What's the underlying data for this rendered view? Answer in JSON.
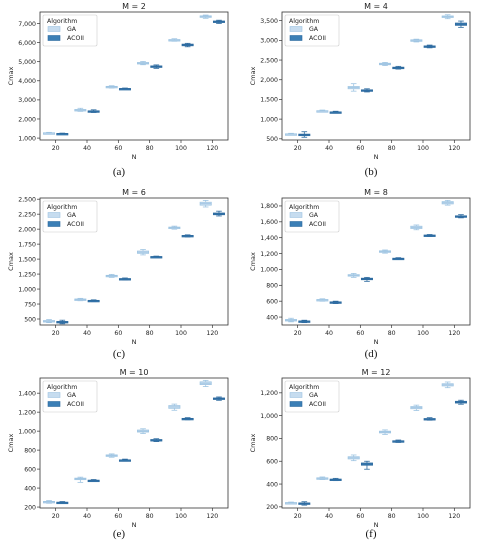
{
  "chart_data": [
    {
      "type": "box",
      "panel": "(a)",
      "title": "M = 2",
      "xlabel": "N",
      "ylabel": "Cmax",
      "categories": [
        "20",
        "40",
        "60",
        "80",
        "100",
        "120"
      ],
      "ylim": [
        900,
        7600
      ],
      "yticks": [
        1000,
        2000,
        3000,
        4000,
        5000,
        6000,
        7000
      ],
      "ytick_labels": [
        "1,000",
        "2,000",
        "3,000",
        "4,000",
        "5,000",
        "6,000",
        "7,000"
      ],
      "legend": {
        "title": "Algorithm",
        "entries": [
          "GA",
          "ACOII"
        ],
        "placement": "top-left"
      },
      "series": [
        {
          "name": "GA",
          "color": "#c6dcef",
          "edge": "#9ec4e2",
          "boxes": [
            {
              "min": 1230,
              "q1": 1250,
              "median": 1265,
              "q3": 1280,
              "max": 1300
            },
            {
              "min": 2400,
              "q1": 2440,
              "median": 2470,
              "q3": 2500,
              "max": 2560
            },
            {
              "min": 3620,
              "q1": 3650,
              "median": 3680,
              "q3": 3710,
              "max": 3740
            },
            {
              "min": 4840,
              "q1": 4880,
              "median": 4920,
              "q3": 4960,
              "max": 5010
            },
            {
              "min": 6070,
              "q1": 6100,
              "median": 6130,
              "q3": 6160,
              "max": 6200
            },
            {
              "min": 7270,
              "q1": 7320,
              "median": 7360,
              "q3": 7400,
              "max": 7440
            }
          ]
        },
        {
          "name": "ACOII",
          "color": "#3b7fb6",
          "edge": "#2d6a9f",
          "boxes": [
            {
              "min": 1210,
              "q1": 1225,
              "median": 1235,
              "q3": 1245,
              "max": 1260
            },
            {
              "min": 2340,
              "q1": 2370,
              "median": 2400,
              "q3": 2430,
              "max": 2480
            },
            {
              "min": 3540,
              "q1": 3565,
              "median": 3580,
              "q3": 3600,
              "max": 3620
            },
            {
              "min": 4650,
              "q1": 4700,
              "median": 4740,
              "q3": 4780,
              "max": 4830
            },
            {
              "min": 5780,
              "q1": 5830,
              "median": 5880,
              "q3": 5920,
              "max": 5960
            },
            {
              "min": 7000,
              "q1": 7050,
              "median": 7090,
              "q3": 7130,
              "max": 7170
            }
          ]
        }
      ]
    },
    {
      "type": "box",
      "panel": "(b)",
      "title": "M = 4",
      "xlabel": "N",
      "ylabel": "Cmax",
      "categories": [
        "20",
        "40",
        "60",
        "80",
        "100",
        "120"
      ],
      "ylim": [
        470,
        3720
      ],
      "yticks": [
        500,
        1000,
        1500,
        2000,
        2500,
        3000,
        3500
      ],
      "ytick_labels": [
        "500",
        "1,000",
        "1,500",
        "2,000",
        "2,500",
        "3,000",
        "3,500"
      ],
      "legend": {
        "title": "Algorithm",
        "entries": [
          "GA",
          "ACOII"
        ],
        "placement": "top-left"
      },
      "series": [
        {
          "name": "GA",
          "color": "#c6dcef",
          "edge": "#9ec4e2",
          "boxes": [
            {
              "min": 600,
              "q1": 610,
              "median": 620,
              "q3": 628,
              "max": 640
            },
            {
              "min": 1180,
              "q1": 1195,
              "median": 1205,
              "q3": 1215,
              "max": 1230
            },
            {
              "min": 1710,
              "q1": 1770,
              "median": 1800,
              "q3": 1830,
              "max": 1900
            },
            {
              "min": 2360,
              "q1": 2385,
              "median": 2400,
              "q3": 2420,
              "max": 2440
            },
            {
              "min": 2960,
              "q1": 2985,
              "median": 3000,
              "q3": 3015,
              "max": 3030
            },
            {
              "min": 3550,
              "q1": 3580,
              "median": 3600,
              "q3": 3620,
              "max": 3650
            }
          ]
        },
        {
          "name": "ACOII",
          "color": "#3b7fb6",
          "edge": "#2d6a9f",
          "boxes": [
            {
              "min": 540,
              "q1": 590,
              "median": 605,
              "q3": 620,
              "max": 680
            },
            {
              "min": 1155,
              "q1": 1165,
              "median": 1175,
              "q3": 1185,
              "max": 1200
            },
            {
              "min": 1690,
              "q1": 1715,
              "median": 1730,
              "q3": 1745,
              "max": 1770
            },
            {
              "min": 2270,
              "q1": 2290,
              "median": 2305,
              "q3": 2320,
              "max": 2340
            },
            {
              "min": 2810,
              "q1": 2830,
              "median": 2845,
              "q3": 2860,
              "max": 2880
            },
            {
              "min": 3330,
              "q1": 3380,
              "median": 3410,
              "q3": 3440,
              "max": 3490
            }
          ]
        }
      ]
    },
    {
      "type": "box",
      "panel": "(c)",
      "title": "M = 6",
      "xlabel": "N",
      "ylabel": "Cmax",
      "categories": [
        "20",
        "40",
        "60",
        "80",
        "100",
        "120"
      ],
      "ylim": [
        400,
        2520
      ],
      "yticks": [
        500,
        750,
        1000,
        1250,
        1500,
        1750,
        2000,
        2250,
        2500
      ],
      "ytick_labels": [
        "500",
        "750",
        "1,000",
        "1,250",
        "1,500",
        "1,750",
        "2,000",
        "2,250",
        "2,500"
      ],
      "legend": {
        "title": "Algorithm",
        "entries": [
          "GA",
          "ACOII"
        ],
        "placement": "top-left"
      },
      "series": [
        {
          "name": "GA",
          "color": "#c6dcef",
          "edge": "#9ec4e2",
          "boxes": [
            {
              "min": 440,
              "q1": 455,
              "median": 465,
              "q3": 475,
              "max": 490
            },
            {
              "min": 805,
              "q1": 815,
              "median": 825,
              "q3": 835,
              "max": 845
            },
            {
              "min": 1195,
              "q1": 1210,
              "median": 1220,
              "q3": 1230,
              "max": 1245
            },
            {
              "min": 1570,
              "q1": 1595,
              "median": 1615,
              "q3": 1635,
              "max": 1660
            },
            {
              "min": 2000,
              "q1": 2015,
              "median": 2025,
              "q3": 2035,
              "max": 2050
            },
            {
              "min": 2370,
              "q1": 2400,
              "median": 2425,
              "q3": 2450,
              "max": 2480
            }
          ]
        },
        {
          "name": "ACOII",
          "color": "#3b7fb6",
          "edge": "#2d6a9f",
          "boxes": [
            {
              "min": 420,
              "q1": 440,
              "median": 450,
              "q3": 460,
              "max": 480
            },
            {
              "min": 790,
              "q1": 800,
              "median": 805,
              "q3": 812,
              "max": 820
            },
            {
              "min": 1150,
              "q1": 1160,
              "median": 1168,
              "q3": 1176,
              "max": 1185
            },
            {
              "min": 1525,
              "q1": 1532,
              "median": 1538,
              "q3": 1544,
              "max": 1550
            },
            {
              "min": 1870,
              "q1": 1880,
              "median": 1888,
              "q3": 1896,
              "max": 1905
            },
            {
              "min": 2220,
              "q1": 2240,
              "median": 2255,
              "q3": 2270,
              "max": 2300
            }
          ]
        }
      ]
    },
    {
      "type": "box",
      "panel": "(d)",
      "title": "M = 8",
      "xlabel": "N",
      "ylabel": "Cmax",
      "categories": [
        "20",
        "40",
        "60",
        "80",
        "100",
        "120"
      ],
      "ylim": [
        300,
        1900
      ],
      "yticks": [
        400,
        600,
        800,
        1000,
        1200,
        1400,
        1600,
        1800
      ],
      "ytick_labels": [
        "400",
        "600",
        "800",
        "1,000",
        "1,200",
        "1,400",
        "1,600",
        "1,800"
      ],
      "legend": {
        "title": "Algorithm",
        "entries": [
          "GA",
          "ACOII"
        ],
        "placement": "top-left"
      },
      "series": [
        {
          "name": "GA",
          "color": "#c6dcef",
          "edge": "#9ec4e2",
          "boxes": [
            {
              "min": 340,
              "q1": 355,
              "median": 362,
              "q3": 370,
              "max": 385
            },
            {
              "min": 600,
              "q1": 610,
              "median": 616,
              "q3": 622,
              "max": 630
            },
            {
              "min": 900,
              "q1": 915,
              "median": 925,
              "q3": 935,
              "max": 950
            },
            {
              "min": 1205,
              "q1": 1215,
              "median": 1225,
              "q3": 1235,
              "max": 1245
            },
            {
              "min": 1500,
              "q1": 1515,
              "median": 1530,
              "q3": 1545,
              "max": 1560
            },
            {
              "min": 1810,
              "q1": 1825,
              "median": 1840,
              "q3": 1855,
              "max": 1870
            }
          ]
        },
        {
          "name": "ACOII",
          "color": "#3b7fb6",
          "edge": "#2d6a9f",
          "boxes": [
            {
              "min": 330,
              "q1": 340,
              "median": 346,
              "q3": 352,
              "max": 360
            },
            {
              "min": 570,
              "q1": 580,
              "median": 585,
              "q3": 592,
              "max": 600
            },
            {
              "min": 850,
              "q1": 870,
              "median": 880,
              "q3": 890,
              "max": 900
            },
            {
              "min": 1125,
              "q1": 1132,
              "median": 1137,
              "q3": 1142,
              "max": 1148
            },
            {
              "min": 1415,
              "q1": 1422,
              "median": 1428,
              "q3": 1434,
              "max": 1440
            },
            {
              "min": 1650,
              "q1": 1660,
              "median": 1668,
              "q3": 1676,
              "max": 1690
            }
          ]
        }
      ]
    },
    {
      "type": "box",
      "panel": "(e)",
      "title": "M = 10",
      "xlabel": "N",
      "ylabel": "Cmax",
      "categories": [
        "20",
        "40",
        "60",
        "80",
        "100",
        "120"
      ],
      "ylim": [
        190,
        1560
      ],
      "yticks": [
        200,
        400,
        600,
        800,
        1000,
        1200,
        1400
      ],
      "ytick_labels": [
        "200",
        "400",
        "600",
        "800",
        "1,000",
        "1,200",
        "1,400"
      ],
      "legend": {
        "title": "Algorithm",
        "entries": [
          "GA",
          "ACOII"
        ],
        "placement": "top-left"
      },
      "series": [
        {
          "name": "GA",
          "color": "#c6dcef",
          "edge": "#9ec4e2",
          "boxes": [
            {
              "min": 240,
              "q1": 248,
              "median": 254,
              "q3": 260,
              "max": 268
            },
            {
              "min": 460,
              "q1": 490,
              "median": 497,
              "q3": 505,
              "max": 515
            },
            {
              "min": 725,
              "q1": 735,
              "median": 742,
              "q3": 750,
              "max": 760
            },
            {
              "min": 975,
              "q1": 990,
              "median": 1000,
              "q3": 1012,
              "max": 1025
            },
            {
              "min": 1220,
              "q1": 1240,
              "median": 1255,
              "q3": 1270,
              "max": 1285
            },
            {
              "min": 1470,
              "q1": 1490,
              "median": 1505,
              "q3": 1520,
              "max": 1535
            }
          ]
        },
        {
          "name": "ACOII",
          "color": "#3b7fb6",
          "edge": "#2d6a9f",
          "boxes": [
            {
              "min": 238,
              "q1": 244,
              "median": 248,
              "q3": 252,
              "max": 258
            },
            {
              "min": 470,
              "q1": 476,
              "median": 480,
              "q3": 484,
              "max": 490
            },
            {
              "min": 685,
              "q1": 690,
              "median": 694,
              "q3": 698,
              "max": 705
            },
            {
              "min": 890,
              "q1": 900,
              "median": 906,
              "q3": 912,
              "max": 920
            },
            {
              "min": 1120,
              "q1": 1126,
              "median": 1130,
              "q3": 1135,
              "max": 1142
            },
            {
              "min": 1325,
              "q1": 1335,
              "median": 1342,
              "q3": 1350,
              "max": 1360
            }
          ]
        }
      ]
    },
    {
      "type": "box",
      "panel": "(f)",
      "title": "M = 12",
      "xlabel": "N",
      "ylabel": "Cmax",
      "categories": [
        "20",
        "40",
        "60",
        "80",
        "100",
        "120"
      ],
      "ylim": [
        190,
        1330
      ],
      "yticks": [
        200,
        400,
        600,
        800,
        1000,
        1200
      ],
      "ytick_labels": [
        "200",
        "400",
        "600",
        "800",
        "1,000",
        "1,200"
      ],
      "legend": {
        "title": "Algorithm",
        "entries": [
          "GA",
          "ACOII"
        ],
        "placement": "top-left"
      },
      "series": [
        {
          "name": "GA",
          "color": "#c6dcef",
          "edge": "#9ec4e2",
          "boxes": [
            {
              "min": 228,
              "q1": 232,
              "median": 235,
              "q3": 238,
              "max": 242
            },
            {
              "min": 440,
              "q1": 445,
              "median": 450,
              "q3": 455,
              "max": 462
            },
            {
              "min": 605,
              "q1": 620,
              "median": 630,
              "q3": 640,
              "max": 655
            },
            {
              "min": 835,
              "q1": 848,
              "median": 856,
              "q3": 864,
              "max": 875
            },
            {
              "min": 1045,
              "q1": 1060,
              "median": 1070,
              "q3": 1080,
              "max": 1092
            },
            {
              "min": 1245,
              "q1": 1260,
              "median": 1270,
              "q3": 1280,
              "max": 1295
            }
          ]
        },
        {
          "name": "ACOII",
          "color": "#3b7fb6",
          "edge": "#2d6a9f",
          "boxes": [
            {
              "min": 215,
              "q1": 225,
              "median": 230,
              "q3": 235,
              "max": 245
            },
            {
              "min": 430,
              "q1": 436,
              "median": 440,
              "q3": 444,
              "max": 450
            },
            {
              "min": 530,
              "q1": 565,
              "median": 575,
              "q3": 585,
              "max": 600
            },
            {
              "min": 765,
              "q1": 772,
              "median": 776,
              "q3": 780,
              "max": 786
            },
            {
              "min": 960,
              "q1": 966,
              "median": 970,
              "q3": 975,
              "max": 982
            },
            {
              "min": 1100,
              "q1": 1110,
              "median": 1118,
              "q3": 1126,
              "max": 1135
            }
          ]
        }
      ]
    }
  ]
}
